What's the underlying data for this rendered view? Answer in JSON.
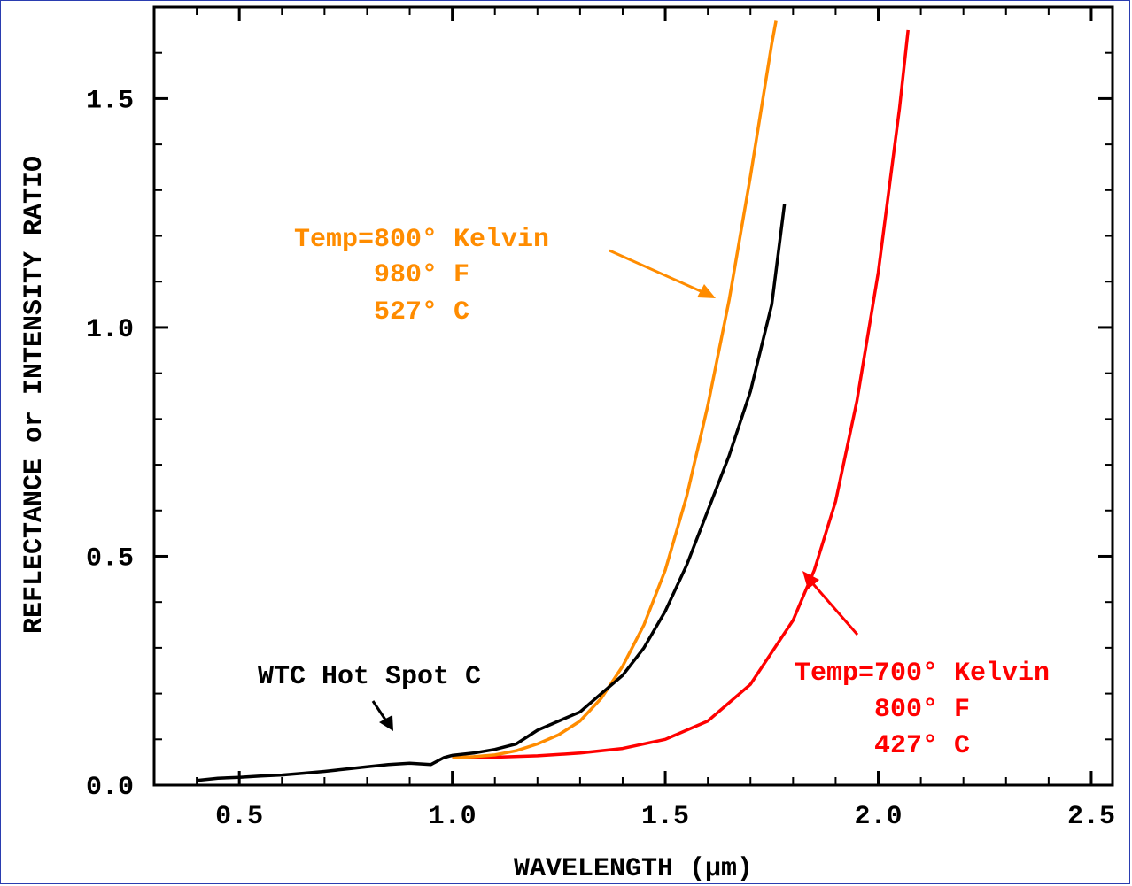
{
  "chart_data": {
    "type": "line",
    "xlabel": "WAVELENGTH (μm)",
    "ylabel": "REFLECTANCE or INTENSITY RATIO",
    "xlim": [
      0.3,
      2.55
    ],
    "ylim": [
      0.0,
      1.7
    ],
    "x_ticks": [
      "0.5",
      "1.0",
      "1.5",
      "2.0",
      "2.5"
    ],
    "x_tick_values": [
      0.5,
      1.0,
      1.5,
      2.0,
      2.5
    ],
    "y_ticks": [
      "0.0",
      "0.5",
      "1.0",
      "1.5"
    ],
    "y_tick_values": [
      0.0,
      0.5,
      1.0,
      1.5
    ],
    "grid": false,
    "series": [
      {
        "color": "#000000",
        "x": [
          0.4,
          0.45,
          0.5,
          0.55,
          0.6,
          0.65,
          0.7,
          0.75,
          0.8,
          0.85,
          0.9,
          0.95,
          0.98,
          1.0,
          1.05,
          1.1,
          1.15,
          1.2,
          1.25,
          1.3,
          1.35,
          1.4,
          1.45,
          1.5,
          1.55,
          1.6,
          1.65,
          1.7,
          1.75,
          1.78
        ],
        "y": [
          0.01,
          0.015,
          0.017,
          0.02,
          0.022,
          0.026,
          0.03,
          0.035,
          0.04,
          0.045,
          0.048,
          0.045,
          0.06,
          0.065,
          0.07,
          0.078,
          0.09,
          0.12,
          0.14,
          0.16,
          0.2,
          0.24,
          0.3,
          0.38,
          0.48,
          0.6,
          0.72,
          0.86,
          1.05,
          1.27
        ]
      },
      {
        "color": "#ff8c00",
        "x": [
          1.0,
          1.05,
          1.1,
          1.15,
          1.2,
          1.25,
          1.3,
          1.35,
          1.4,
          1.45,
          1.5,
          1.55,
          1.6,
          1.65,
          1.7,
          1.75,
          1.76
        ],
        "y": [
          0.06,
          0.062,
          0.066,
          0.075,
          0.09,
          0.11,
          0.14,
          0.19,
          0.26,
          0.35,
          0.47,
          0.63,
          0.83,
          1.06,
          1.33,
          1.62,
          1.67
        ]
      },
      {
        "color": "#ff0000",
        "x": [
          1.0,
          1.1,
          1.2,
          1.3,
          1.4,
          1.5,
          1.6,
          1.7,
          1.8,
          1.85,
          1.9,
          1.95,
          2.0,
          2.05,
          2.07
        ],
        "y": [
          0.06,
          0.061,
          0.064,
          0.07,
          0.08,
          0.1,
          0.14,
          0.22,
          0.36,
          0.47,
          0.62,
          0.84,
          1.12,
          1.48,
          1.65
        ]
      }
    ],
    "annotations": [
      {
        "lines": [
          "Temp=800° Kelvin",
          "980° F",
          "527° C"
        ],
        "color": "#ff8c00"
      },
      {
        "lines": [
          "Temp=700° Kelvin",
          "800° F",
          "427° C"
        ],
        "color": "#ff0000"
      },
      {
        "lines": [
          "WTC Hot Spot C"
        ],
        "color": "#000000"
      }
    ]
  }
}
